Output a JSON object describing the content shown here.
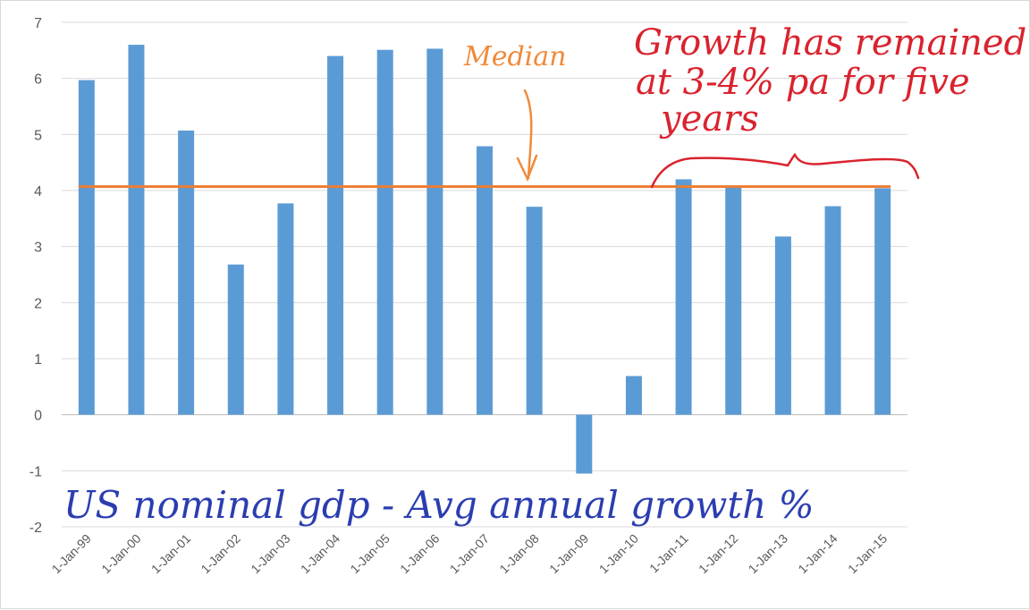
{
  "chart_data": {
    "type": "bar",
    "categories": [
      "1-Jan-99",
      "1-Jan-00",
      "1-Jan-01",
      "1-Jan-02",
      "1-Jan-03",
      "1-Jan-04",
      "1-Jan-05",
      "1-Jan-06",
      "1-Jan-07",
      "1-Jan-08",
      "1-Jan-09",
      "1-Jan-10",
      "1-Jan-11",
      "1-Jan-12",
      "1-Jan-13",
      "1-Jan-14",
      "1-Jan-15"
    ],
    "values": [
      5.97,
      6.6,
      5.07,
      2.68,
      3.77,
      6.4,
      6.51,
      6.53,
      4.79,
      3.71,
      -1.05,
      0.69,
      4.2,
      4.07,
      3.18,
      3.72,
      4.04
    ],
    "median": 4.07,
    "ylim": [
      -2,
      7
    ],
    "yticks": [
      -2,
      -1,
      0,
      1,
      2,
      3,
      4,
      5,
      6,
      7
    ],
    "grid": true,
    "bar_color": "#5b9bd5",
    "median_color": "#ed7d31",
    "annotations": {
      "median_label": "Median",
      "note_line1": "Growth has remained",
      "note_line2": "at 3-4% pa for five",
      "note_line3": "years",
      "caption": "US nominal gdp - Avg annual growth %"
    },
    "annotation_colors": {
      "median_label": "#f08a3a",
      "note": "#d9232e",
      "caption": "#2b3db0"
    }
  }
}
